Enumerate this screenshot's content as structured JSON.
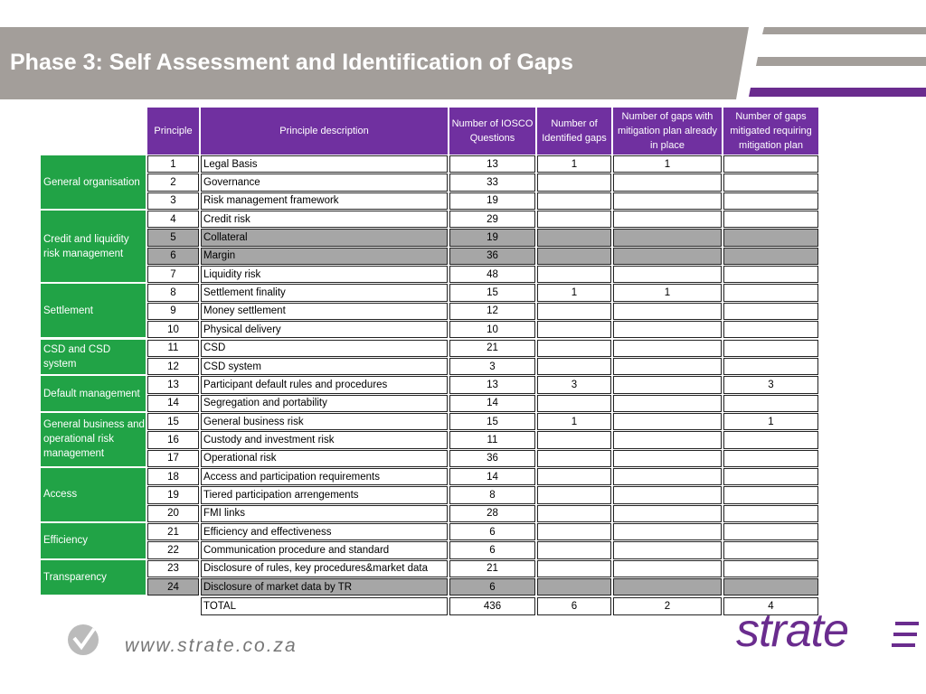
{
  "header": {
    "title": "Phase 3: Self Assessment and Identification of Gaps"
  },
  "table": {
    "columns": [
      "Principle",
      "Principle description",
      "Number of IOSCO Questions",
      "Number of Identified gaps",
      "Number of gaps with mitigation plan already in place",
      "Number of gaps mitigated requiring mitigation plan"
    ],
    "groups": [
      {
        "label": "General organisation",
        "rows": [
          {
            "cells": [
              1,
              "Legal Basis",
              13,
              1,
              1,
              null
            ]
          },
          {
            "cells": [
              2,
              "Governance",
              33,
              null,
              null,
              null
            ]
          },
          {
            "cells": [
              3,
              "Risk management framework",
              19,
              null,
              null,
              null
            ]
          }
        ]
      },
      {
        "label": "Credit and liquidity risk management",
        "rows": [
          {
            "cells": [
              4,
              "Credit risk",
              29,
              null,
              null,
              null
            ]
          },
          {
            "cells": [
              5,
              "Collateral",
              19,
              null,
              null,
              null
            ],
            "fill": "#a6a6a6"
          },
          {
            "cells": [
              6,
              "Margin",
              36,
              null,
              null,
              null
            ],
            "fill": "#a6a6a6"
          },
          {
            "cells": [
              7,
              "Liquidity risk",
              48,
              null,
              null,
              null
            ]
          }
        ]
      },
      {
        "label": "Settlement",
        "rows": [
          {
            "cells": [
              8,
              "Settlement finality",
              15,
              1,
              1,
              null
            ]
          },
          {
            "cells": [
              9,
              "Money settlement",
              12,
              null,
              null,
              null
            ]
          },
          {
            "cells": [
              10,
              "Physical delivery",
              10,
              null,
              null,
              null
            ]
          }
        ]
      },
      {
        "label": "CSD and CSD system",
        "rows": [
          {
            "cells": [
              11,
              "CSD",
              21,
              null,
              null,
              null
            ]
          },
          {
            "cells": [
              12,
              "CSD system",
              3,
              null,
              null,
              null
            ]
          }
        ]
      },
      {
        "label": "Default management",
        "rows": [
          {
            "cells": [
              13,
              "Participant default rules and procedures",
              13,
              3,
              null,
              3
            ]
          },
          {
            "cells": [
              14,
              "Segregation and portability",
              14,
              null,
              null,
              null
            ]
          }
        ]
      },
      {
        "label": "General business and operational risk management",
        "rows": [
          {
            "cells": [
              15,
              "General business risk",
              15,
              1,
              null,
              1
            ]
          },
          {
            "cells": [
              16,
              "Custody and investment risk",
              11,
              null,
              null,
              null
            ]
          },
          {
            "cells": [
              17,
              "Operational risk",
              36,
              null,
              null,
              null
            ]
          }
        ]
      },
      {
        "label": "Access",
        "rows": [
          {
            "cells": [
              18,
              "Access and participation requirements",
              14,
              null,
              null,
              null
            ]
          },
          {
            "cells": [
              19,
              "Tiered participation arrengements",
              8,
              null,
              null,
              null
            ]
          },
          {
            "cells": [
              20,
              "FMI links",
              28,
              null,
              null,
              null
            ]
          }
        ]
      },
      {
        "label": "Efficiency",
        "rows": [
          {
            "cells": [
              21,
              "Efficiency and effectiveness",
              6,
              null,
              null,
              null
            ]
          },
          {
            "cells": [
              22,
              "Communication procedure and standard",
              6,
              null,
              null,
              null
            ]
          }
        ]
      },
      {
        "label": "Transparency",
        "rows": [
          {
            "cells": [
              23,
              "Disclosure of rules, key procedures&market data",
              21,
              null,
              null,
              null
            ]
          },
          {
            "cells": [
              24,
              "Disclosure of market data by TR",
              6,
              null,
              null,
              null
            ],
            "fill": "#a6a6a6"
          }
        ]
      }
    ],
    "total": {
      "label": "TOTAL",
      "values": [
        436,
        6,
        2,
        4
      ]
    }
  },
  "footer": {
    "website": "www.strate.co.za",
    "logo": "strate"
  }
}
